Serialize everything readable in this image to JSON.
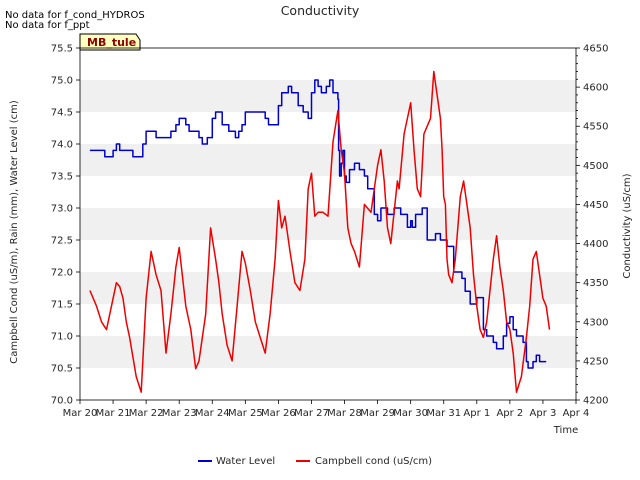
{
  "notes": [
    "No data for f_cond_HYDROS",
    "No data for f_ppt"
  ],
  "badge": "MB_tule",
  "colors": {
    "water_level": "#0000cc",
    "campbell_cond": "#ee0000",
    "band": "#f0f0f0",
    "badge_bg": "#ffffc0",
    "badge_border": "#000000"
  },
  "chart_data": {
    "type": "line",
    "title": "Conductivity",
    "xlabel": "Time",
    "ylabel_left": "Campbell Cond (uS/m), Rain (mm), Water Level (cm)",
    "ylabel_right": "Conductivity (uS/cm)",
    "x_ticks": [
      "Mar 20",
      "Mar 21",
      "Mar 22",
      "Mar 23",
      "Mar 24",
      "Mar 25",
      "Mar 26",
      "Mar 27",
      "Mar 28",
      "Mar 29",
      "Mar 30",
      "Mar 31",
      "Apr 1",
      "Apr 2",
      "Apr 3",
      "Apr 4"
    ],
    "x_range_days": [
      0,
      15
    ],
    "ylim_left": [
      70.0,
      75.5
    ],
    "y_ticks_left": [
      "70.0",
      "70.5",
      "71.0",
      "71.5",
      "72.0",
      "72.5",
      "73.0",
      "73.5",
      "74.0",
      "74.5",
      "75.0",
      "75.5"
    ],
    "ylim_right": [
      4200,
      4650
    ],
    "y_ticks_right": [
      "4200",
      "4250",
      "4300",
      "4350",
      "4400",
      "4450",
      "4500",
      "4550",
      "4600",
      "4650"
    ],
    "grid": "horizontal bands",
    "legend_position": "bottom-center",
    "series": [
      {
        "name": "Water Level",
        "axis": "left",
        "x": [
          0.3,
          0.6,
          0.75,
          0.9,
          1.0,
          1.1,
          1.2,
          1.4,
          1.6,
          1.75,
          1.9,
          2.0,
          2.3,
          2.45,
          2.6,
          2.75,
          2.9,
          3.0,
          3.2,
          3.3,
          3.4,
          3.6,
          3.7,
          3.85,
          4.0,
          4.1,
          4.3,
          4.5,
          4.6,
          4.7,
          4.8,
          4.9,
          5.0,
          5.2,
          5.4,
          5.6,
          5.7,
          6.0,
          6.1,
          6.3,
          6.4,
          6.6,
          6.75,
          6.9,
          7.0,
          7.1,
          7.2,
          7.3,
          7.45,
          7.55,
          7.65,
          7.75,
          7.8,
          7.82,
          7.85,
          7.9,
          7.95,
          8.0,
          8.05,
          8.15,
          8.3,
          8.45,
          8.55,
          8.6,
          8.7,
          8.9,
          9.0,
          9.1,
          9.3,
          9.5,
          9.6,
          9.7,
          9.8,
          9.9,
          10.0,
          10.05,
          10.15,
          10.35,
          10.5,
          10.6,
          10.75,
          10.9,
          11.0,
          11.1,
          11.3,
          11.4,
          11.55,
          11.65,
          11.8,
          11.9,
          12.0,
          12.2,
          12.3,
          12.5,
          12.6,
          12.8,
          12.9,
          13.0,
          13.1,
          13.2,
          13.4,
          13.5,
          13.55,
          13.6,
          13.7,
          13.8,
          13.9,
          14.0,
          14.1
        ],
        "values": [
          73.9,
          73.9,
          73.8,
          73.8,
          73.9,
          74.0,
          73.9,
          73.9,
          73.8,
          73.8,
          74.0,
          74.2,
          74.1,
          74.1,
          74.1,
          74.2,
          74.3,
          74.4,
          74.3,
          74.2,
          74.2,
          74.1,
          74.0,
          74.1,
          74.4,
          74.5,
          74.3,
          74.2,
          74.2,
          74.1,
          74.2,
          74.3,
          74.5,
          74.5,
          74.5,
          74.4,
          74.3,
          74.6,
          74.8,
          74.9,
          74.8,
          74.6,
          74.5,
          74.4,
          74.8,
          75.0,
          74.9,
          74.8,
          74.9,
          75.0,
          74.8,
          74.8,
          74.7,
          73.9,
          73.5,
          73.7,
          73.9,
          73.5,
          73.4,
          73.6,
          73.7,
          73.6,
          73.6,
          73.5,
          73.3,
          72.9,
          72.8,
          73.0,
          72.9,
          73.0,
          73.0,
          72.9,
          72.9,
          72.7,
          72.8,
          72.7,
          72.9,
          73.0,
          72.5,
          72.5,
          72.6,
          72.5,
          72.5,
          72.4,
          72.0,
          72.0,
          71.9,
          71.7,
          71.5,
          71.5,
          71.6,
          71.1,
          71.0,
          70.9,
          70.8,
          71.0,
          71.2,
          71.3,
          71.1,
          71.0,
          70.9,
          70.6,
          70.5,
          70.5,
          70.6,
          70.7,
          70.6,
          70.6,
          70.6
        ]
      },
      {
        "name": "Campbell cond (uS/cm)",
        "axis": "right",
        "x": [
          0.3,
          0.5,
          0.65,
          0.8,
          1.0,
          1.1,
          1.2,
          1.3,
          1.4,
          1.5,
          1.7,
          1.85,
          2.0,
          2.15,
          2.3,
          2.45,
          2.6,
          2.75,
          2.9,
          3.0,
          3.2,
          3.35,
          3.5,
          3.6,
          3.8,
          3.95,
          4.1,
          4.2,
          4.3,
          4.45,
          4.6,
          4.75,
          4.9,
          5.0,
          5.15,
          5.3,
          5.45,
          5.6,
          5.75,
          5.9,
          6.0,
          6.1,
          6.2,
          6.35,
          6.5,
          6.65,
          6.8,
          6.9,
          7.0,
          7.1,
          7.2,
          7.35,
          7.5,
          7.65,
          7.8,
          7.9,
          8.0,
          8.1,
          8.2,
          8.3,
          8.45,
          8.6,
          8.8,
          9.0,
          9.1,
          9.2,
          9.3,
          9.4,
          9.5,
          9.6,
          9.65,
          9.8,
          9.9,
          10.0,
          10.1,
          10.2,
          10.3,
          10.4,
          10.5,
          10.6,
          10.7,
          10.8,
          10.9,
          10.95,
          11.0,
          11.05,
          11.1,
          11.15,
          11.25,
          11.35,
          11.5,
          11.6,
          11.7,
          11.8,
          11.9,
          12.0,
          12.1,
          12.2,
          12.3,
          12.5,
          12.6,
          12.7,
          12.8,
          12.9,
          13.0,
          13.1,
          13.2,
          13.35,
          13.5,
          13.6,
          13.7,
          13.8,
          13.9,
          14.0,
          14.1,
          14.2
        ],
        "values": [
          4340,
          4320,
          4300,
          4290,
          4330,
          4350,
          4345,
          4330,
          4300,
          4280,
          4230,
          4210,
          4330,
          4390,
          4360,
          4340,
          4260,
          4310,
          4370,
          4395,
          4320,
          4290,
          4240,
          4250,
          4310,
          4420,
          4380,
          4350,
          4310,
          4270,
          4250,
          4320,
          4390,
          4375,
          4340,
          4300,
          4280,
          4260,
          4310,
          4380,
          4455,
          4420,
          4435,
          4390,
          4350,
          4340,
          4380,
          4470,
          4490,
          4435,
          4440,
          4440,
          4435,
          4530,
          4570,
          4520,
          4490,
          4420,
          4400,
          4390,
          4370,
          4450,
          4440,
          4500,
          4520,
          4480,
          4420,
          4400,
          4440,
          4480,
          4470,
          4540,
          4560,
          4580,
          4520,
          4470,
          4460,
          4540,
          4550,
          4560,
          4620,
          4590,
          4560,
          4520,
          4460,
          4450,
          4380,
          4360,
          4350,
          4380,
          4460,
          4480,
          4450,
          4420,
          4360,
          4320,
          4290,
          4280,
          4300,
          4380,
          4410,
          4370,
          4340,
          4300,
          4290,
          4260,
          4210,
          4230,
          4280,
          4320,
          4380,
          4390,
          4360,
          4330,
          4320,
          4290
        ]
      }
    ]
  }
}
